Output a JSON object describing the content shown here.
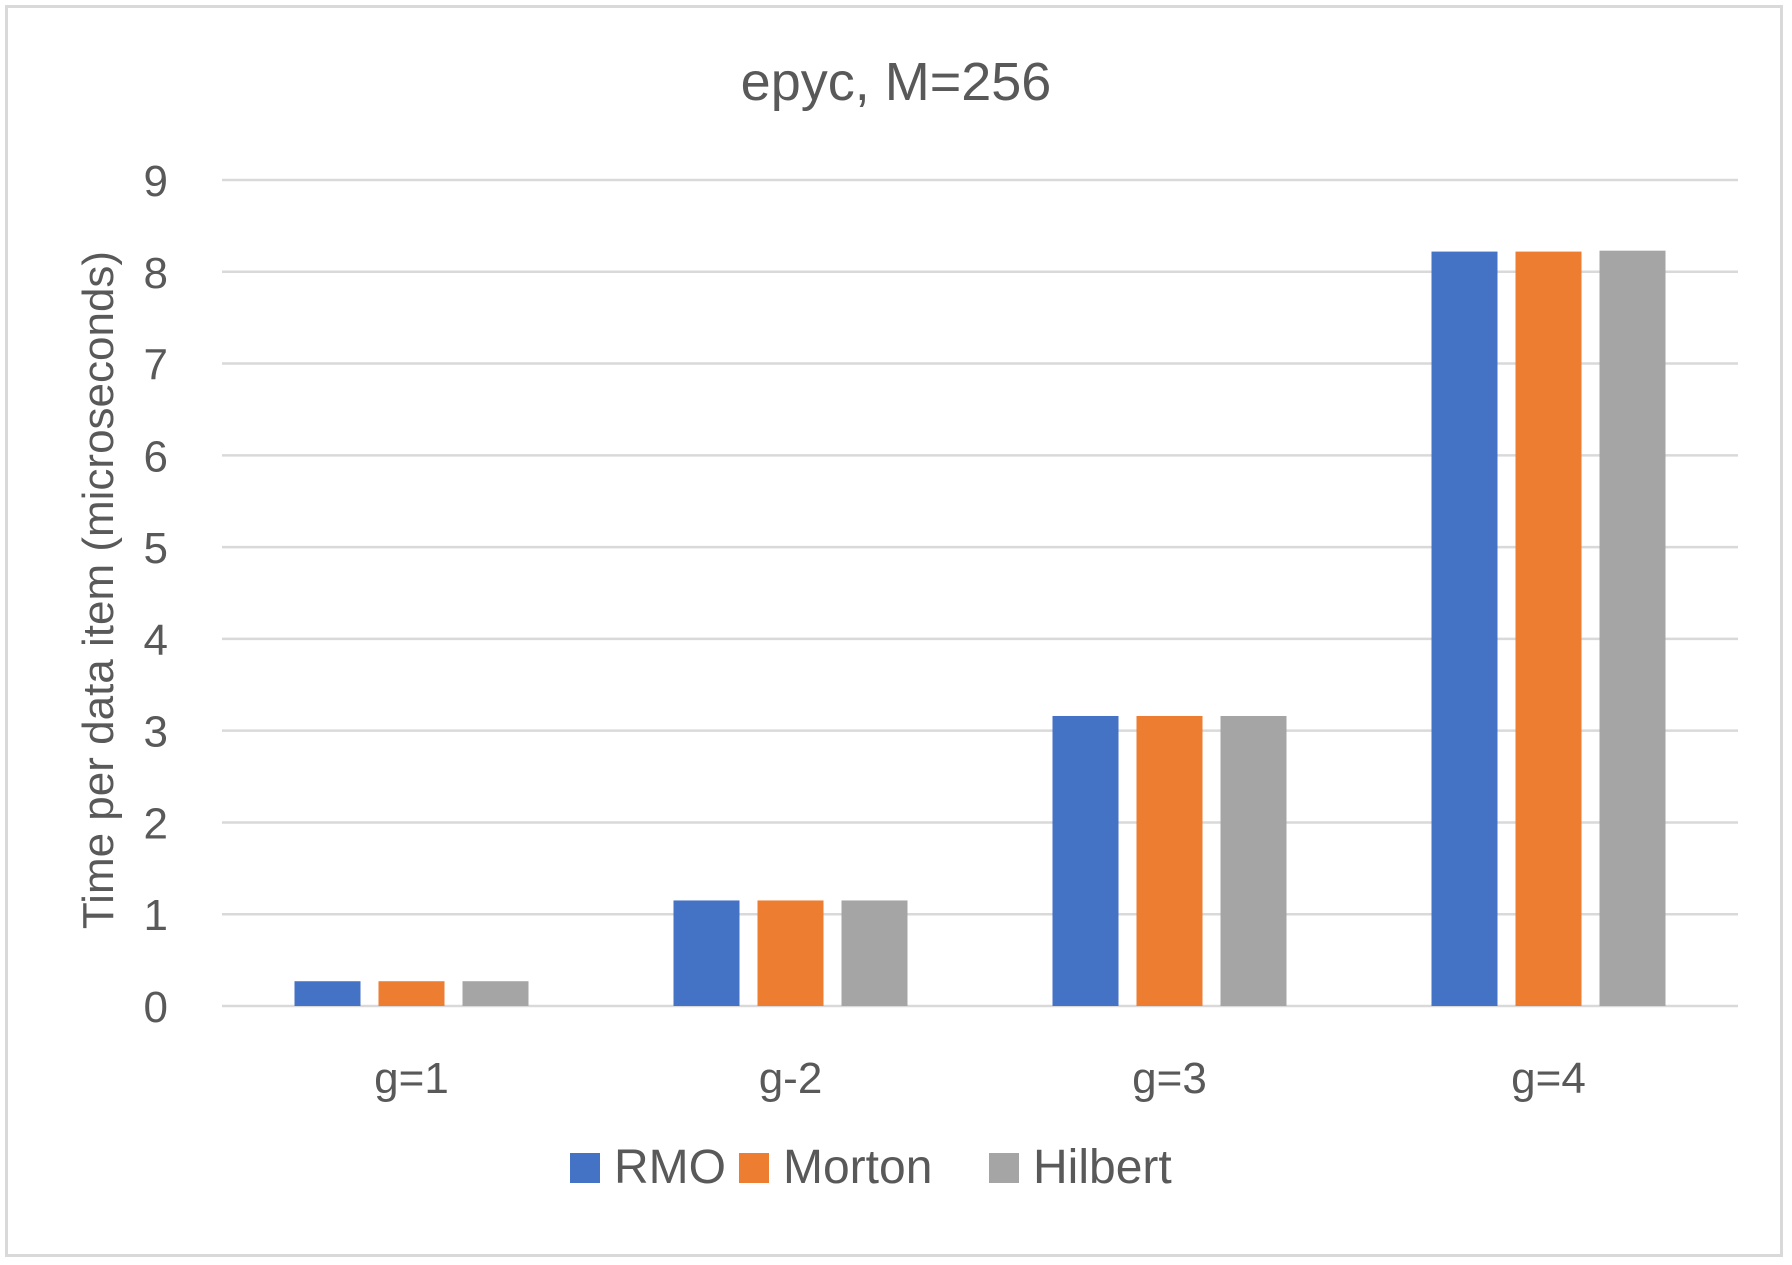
{
  "chart_data": {
    "type": "bar",
    "title": "epyc, M=256",
    "xlabel": "",
    "ylabel": "Time per data item (microseconds)",
    "ylim": [
      0,
      9
    ],
    "yticks": [
      "0",
      "1",
      "2",
      "3",
      "4",
      "5",
      "6",
      "7",
      "8",
      "9"
    ],
    "grid": true,
    "legend_position": "bottom",
    "categories": [
      "g=1",
      "g-2",
      "g=3",
      "g=4"
    ],
    "series": [
      {
        "name": "RMO",
        "color": "#4472c4",
        "values": [
          0.27,
          1.15,
          3.16,
          8.22
        ]
      },
      {
        "name": "Morton",
        "color": "#ed7d31",
        "values": [
          0.27,
          1.15,
          3.16,
          8.22
        ]
      },
      {
        "name": "Hilbert",
        "color": "#a5a5a5",
        "values": [
          0.27,
          1.15,
          3.16,
          8.23
        ]
      }
    ]
  }
}
